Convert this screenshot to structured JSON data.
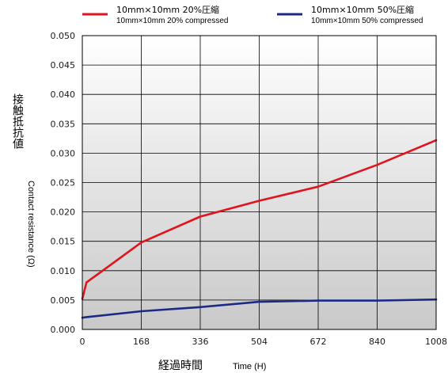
{
  "chart_data": {
    "type": "line",
    "x": [
      0,
      12,
      168,
      336,
      504,
      672,
      840,
      1008
    ],
    "xlim": [
      0,
      1008
    ],
    "ylim": [
      0,
      0.05
    ],
    "xticks": [
      "0",
      "168",
      "336",
      "504",
      "672",
      "840",
      "1008"
    ],
    "yticks": [
      "0.000",
      "0.005",
      "0.010",
      "0.015",
      "0.020",
      "0.025",
      "0.030",
      "0.035",
      "0.040",
      "0.045",
      "0.050"
    ],
    "xlabel_jp": "経過時間",
    "xlabel_en": "Time (H)",
    "ylabel_jp": "接触抵抗値",
    "ylabel_en": "Contact resistance (Ω)",
    "grid": true,
    "legend_position": "top",
    "series": [
      {
        "name_jp": "10mm×10mm 20%圧縮",
        "name_en": "10mm×10mm 20% compressed",
        "color": "#e0141e",
        "values": [
          0.0052,
          0.008,
          0.0148,
          0.0192,
          0.0219,
          0.0243,
          0.028,
          0.0322
        ]
      },
      {
        "name_jp": "10mm×10mm 50%圧縮",
        "name_en": "10mm×10mm 50% compressed",
        "color": "#1c2a86",
        "values": [
          0.002,
          0.0021,
          0.0031,
          0.0038,
          0.0047,
          0.0049,
          0.0049,
          0.0051
        ]
      }
    ]
  }
}
